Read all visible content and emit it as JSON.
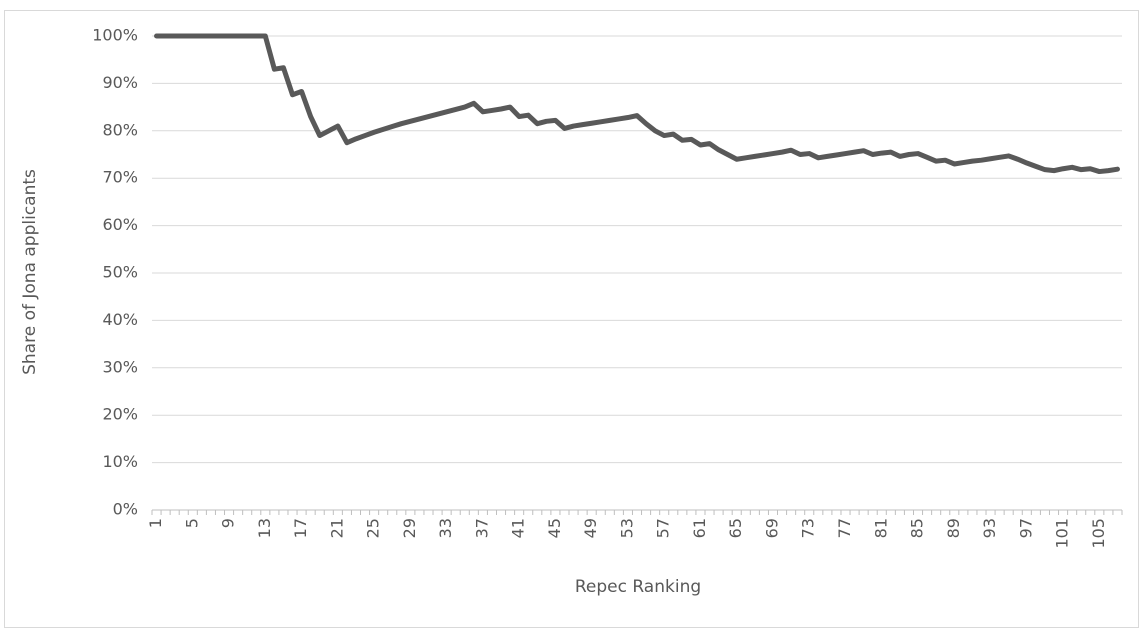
{
  "chart_data": {
    "type": "line",
    "x_label": "Repec Ranking",
    "y_label": "Share of Jona applicants",
    "categories": [
      "1",
      null,
      null,
      null,
      "5",
      null,
      null,
      null,
      "9",
      null,
      null,
      null,
      "13",
      null,
      null,
      null,
      "17",
      null,
      null,
      null,
      "21",
      null,
      null,
      null,
      "25",
      null,
      null,
      null,
      "29",
      null,
      null,
      null,
      "33",
      null,
      null,
      null,
      "37",
      null,
      null,
      null,
      "41",
      null,
      null,
      null,
      "45",
      null,
      null,
      null,
      "49",
      null,
      null,
      null,
      "53",
      null,
      null,
      null,
      "57",
      null,
      null,
      null,
      "61",
      null,
      null,
      null,
      "65",
      null,
      null,
      null,
      "69",
      null,
      null,
      null,
      "73",
      null,
      null,
      null,
      "77",
      null,
      null,
      null,
      "81",
      null,
      null,
      null,
      "85",
      null,
      null,
      null,
      "89",
      null,
      null,
      null,
      "93",
      null,
      null,
      null,
      "97",
      null,
      null,
      null,
      "101",
      null,
      null,
      null,
      "105",
      null,
      null
    ],
    "series": [
      {
        "color": "#595959",
        "values": [
          100,
          100,
          100,
          100,
          100,
          100,
          100,
          100,
          100,
          100,
          100,
          100,
          100,
          93,
          93.3,
          87.6,
          88.3,
          83,
          79,
          80,
          81,
          77.5,
          78.3,
          79,
          79.7,
          80.3,
          80.9,
          81.5,
          82,
          82.5,
          83,
          83.5,
          84,
          84.5,
          85,
          85.8,
          84,
          84.3,
          84.6,
          85,
          83,
          83.3,
          81.5,
          82,
          82.2,
          80.5,
          81,
          81.3,
          81.6,
          81.9,
          82.2,
          82.5,
          82.8,
          83.2,
          81.5,
          80,
          79,
          79.3,
          78,
          78.2,
          77,
          77.3,
          76,
          75,
          74,
          74.3,
          74.6,
          74.9,
          75.2,
          75.5,
          75.9,
          75,
          75.2,
          74.3,
          74.6,
          74.9,
          75.2,
          75.5,
          75.8,
          75,
          75.3,
          75.5,
          74.6,
          75,
          75.2,
          74.4,
          73.6,
          73.8,
          73,
          73.3,
          73.6,
          73.8,
          74.1,
          74.4,
          74.7,
          74,
          73.2,
          72.5,
          71.8,
          71.6,
          72,
          72.3,
          71.8,
          72,
          71.4,
          71.6,
          71.9
        ]
      }
    ],
    "ylim": [
      0,
      100
    ],
    "yticks": [
      {
        "value": 0,
        "label": "0%"
      },
      {
        "value": 10,
        "label": "10%"
      },
      {
        "value": 20,
        "label": "20%"
      },
      {
        "value": 30,
        "label": "30%"
      },
      {
        "value": 40,
        "label": "40%"
      },
      {
        "value": 50,
        "label": "50%"
      },
      {
        "value": 60,
        "label": "60%"
      },
      {
        "value": 70,
        "label": "70%"
      },
      {
        "value": 80,
        "label": "80%"
      },
      {
        "value": 90,
        "label": "90%"
      },
      {
        "value": 100,
        "label": "100%"
      }
    ],
    "grid": true
  }
}
